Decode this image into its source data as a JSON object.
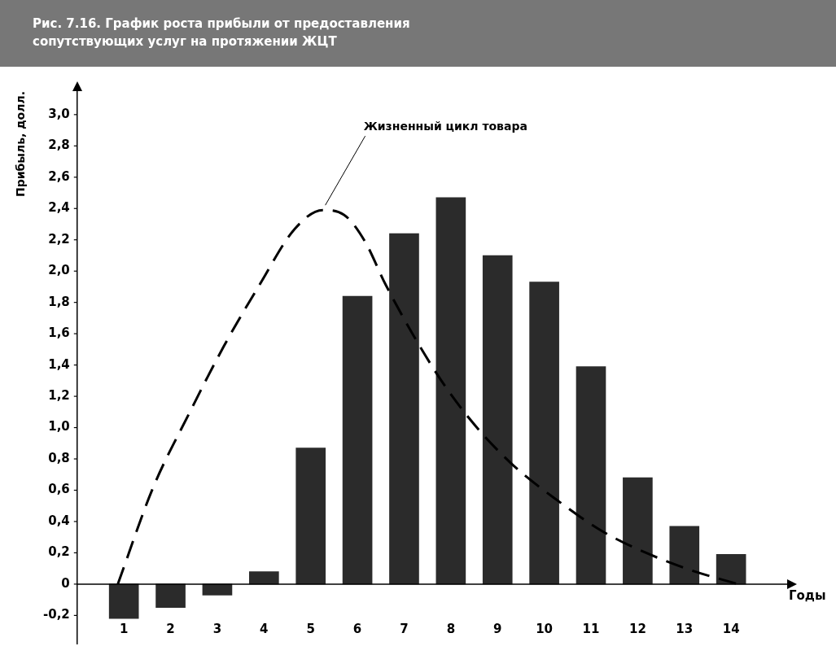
{
  "chart_data": {
    "type": "bar",
    "title": "Рис. 7.16. График роста прибыли от предоставления сопутствующих услуг на протяжении ЖЦТ",
    "xlabel": "Годы",
    "ylabel": "Прибыль, долл.",
    "x": [
      1,
      2,
      3,
      4,
      5,
      6,
      7,
      8,
      9,
      10,
      11,
      12,
      13,
      14
    ],
    "xlim": [
      0,
      15.2
    ],
    "xticks": [
      1,
      2,
      3,
      4,
      5,
      6,
      7,
      8,
      9,
      10,
      11,
      12,
      13,
      14
    ],
    "ylim": [
      -0.38,
      3.15
    ],
    "yticks": [
      {
        "value": -0.2,
        "label": "-0,2"
      },
      0,
      {
        "value": 0.2,
        "label": "0,2"
      },
      {
        "value": 0.4,
        "label": "0,4"
      },
      {
        "value": 0.6,
        "label": "0,6"
      },
      {
        "value": 0.8,
        "label": "0,8"
      },
      {
        "value": 1,
        "label": "1,0"
      },
      {
        "value": 1.2,
        "label": "1,2"
      },
      {
        "value": 1.4,
        "label": "1,4"
      },
      {
        "value": 1.6,
        "label": "1,6"
      },
      {
        "value": 1.8,
        "label": "1,8"
      },
      {
        "value": 2,
        "label": "2,0"
      },
      {
        "value": 2.2,
        "label": "2,2"
      },
      {
        "value": 2.4,
        "label": "2,4"
      },
      {
        "value": 2.6,
        "label": "2,6"
      },
      {
        "value": 2.8,
        "label": "2,8"
      },
      {
        "value": 3,
        "label": "3,0"
      }
    ],
    "series": [
      {
        "color": "#2b2b2b",
        "values": [
          -0.22,
          -0.15,
          -0.07,
          0.08,
          0.87,
          1.84,
          2.24,
          2.47,
          2.1,
          1.93,
          1.39,
          0.68,
          0.37,
          0.19
        ]
      },
      {
        "type": "line",
        "color": "#000000",
        "line_style": "dashed",
        "marker": "none",
        "x": [
          0.87,
          1.63,
          2.38,
          3.14,
          3.9,
          4.66,
          5.26,
          5.71,
          6.16,
          6.61,
          7.58,
          8.31,
          9.26,
          10.35,
          11.23,
          12.18,
          13.13,
          14.15
        ],
        "values": [
          0,
          0.62,
          1.08,
          1.52,
          1.91,
          2.27,
          2.39,
          2.36,
          2.19,
          1.91,
          1.4,
          1.09,
          0.78,
          0.52,
          0.34,
          0.2,
          0.09,
          0
        ]
      }
    ],
    "annotations": [
      {
        "text": "Жизненный цикл товара",
        "x": 5.26,
        "y": 2.39
      }
    ],
    "legend": false
  }
}
